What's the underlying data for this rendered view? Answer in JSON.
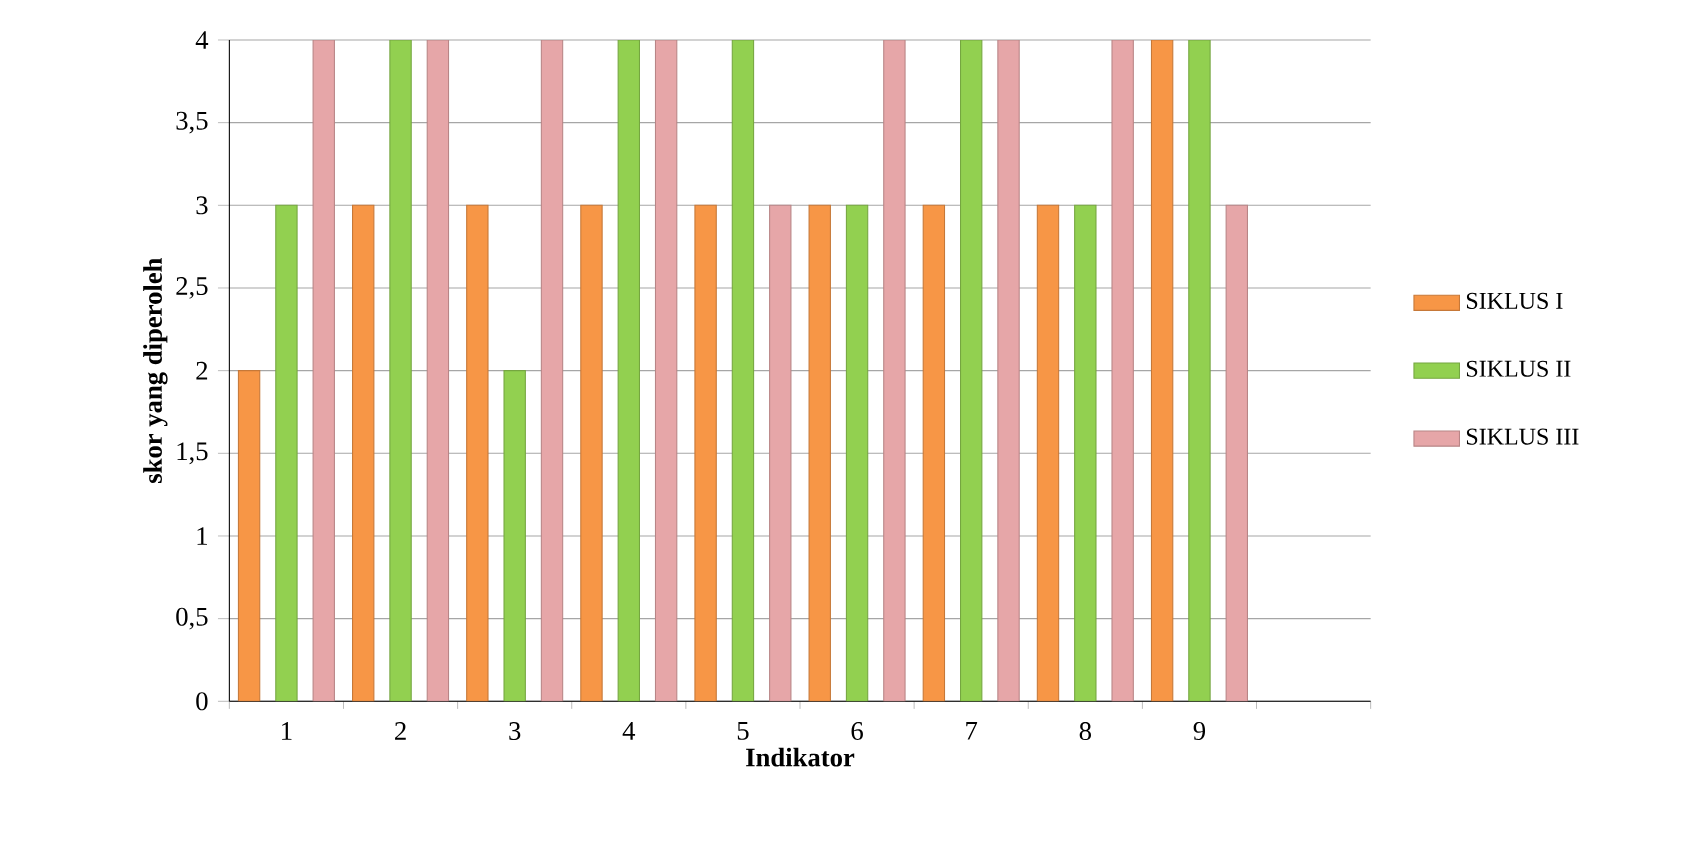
{
  "chart_data": {
    "type": "bar",
    "xlabel": "Indikator",
    "ylabel": "skor yang diperoleh",
    "categories": [
      "1",
      "2",
      "3",
      "4",
      "5",
      "6",
      "7",
      "8",
      "9",
      null
    ],
    "series": [
      {
        "name": "SIKLUS I",
        "color": "#f79646",
        "values": [
          2,
          3,
          3,
          3,
          3,
          3,
          3,
          3,
          4,
          null
        ]
      },
      {
        "name": "SIKLUS II",
        "color": "#92d050",
        "values": [
          3,
          4,
          2,
          4,
          4,
          3,
          4,
          3,
          4,
          null
        ]
      },
      {
        "name": "SIKLUS III",
        "color": "#e6a6a8",
        "values": [
          4,
          4,
          4,
          4,
          3,
          4,
          4,
          4,
          3,
          null
        ]
      }
    ],
    "ylim": [
      0,
      4
    ],
    "yticks": [
      0,
      {
        "value": 0.5,
        "label": "0,5"
      },
      1,
      {
        "value": 1.5,
        "label": "1,5"
      },
      2,
      {
        "value": 2.5,
        "label": "2,5"
      },
      3,
      {
        "value": 3.5,
        "label": "3,5"
      },
      4
    ],
    "grid": "y",
    "legend": "right"
  }
}
